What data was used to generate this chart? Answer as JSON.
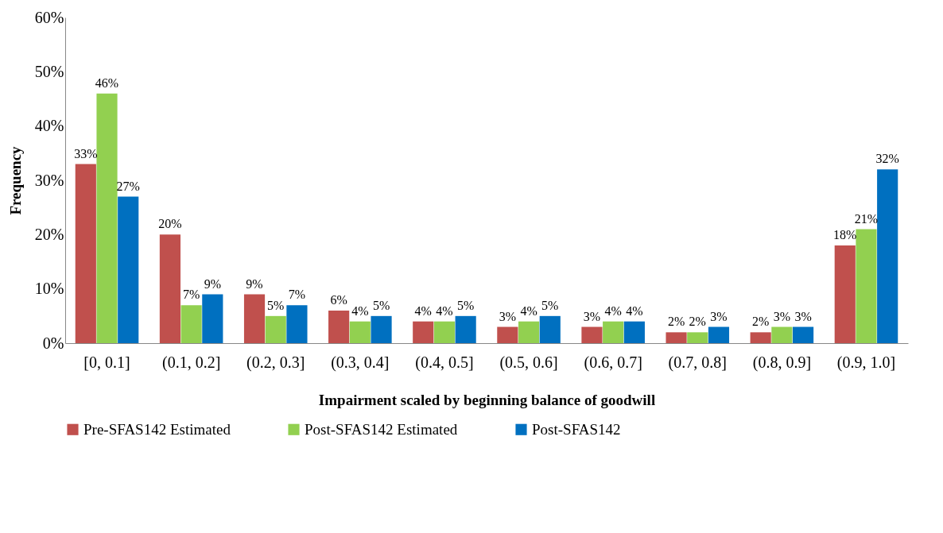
{
  "chart_data": {
    "type": "bar",
    "xlabel": "Impairment scaled by beginning balance of goodwill",
    "ylabel": "Frequency",
    "categories": [
      "[0, 0.1]",
      "(0.1, 0.2]",
      "(0.2, 0.3]",
      "(0.3, 0.4]",
      "(0.4, 0.5]",
      "(0.5, 0.6]",
      "(0.6, 0.7]",
      "(0.7, 0.8]",
      "(0.8, 0.9]",
      "(0.9, 1.0]"
    ],
    "series": [
      {
        "name": "Pre-SFAS142 Estimated",
        "color": "#c0504d",
        "values": [
          33,
          20,
          9,
          6,
          4,
          3,
          3,
          2,
          2,
          18
        ],
        "value_labels": [
          "33%",
          "20%",
          "9%",
          "6%",
          "4%",
          "3%",
          "3%",
          "2%",
          "2%",
          "18%"
        ]
      },
      {
        "name": "Post-SFAS142 Estimated",
        "color": "#92d050",
        "values": [
          46,
          7,
          5,
          4,
          4,
          4,
          4,
          2,
          3,
          21
        ],
        "value_labels": [
          "46%",
          "7%",
          "5%",
          "4%",
          "4%",
          "4%",
          "4%",
          "2%",
          "3%",
          "21%"
        ]
      },
      {
        "name": "Post-SFAS142",
        "color": "#0070c0",
        "values": [
          27,
          9,
          7,
          5,
          5,
          5,
          4,
          3,
          3,
          32
        ],
        "value_labels": [
          "27%",
          "9%",
          "7%",
          "5%",
          "5%",
          "5%",
          "4%",
          "3%",
          "3%",
          "32%"
        ]
      }
    ],
    "ylim": [
      0,
      60
    ],
    "yticks": [
      {
        "value": 0,
        "label": "0%"
      },
      {
        "value": 10,
        "label": "10%"
      },
      {
        "value": 20,
        "label": "20%"
      },
      {
        "value": 30,
        "label": "30%"
      },
      {
        "value": 40,
        "label": "40%"
      },
      {
        "value": 50,
        "label": "50%"
      },
      {
        "value": 60,
        "label": "60%"
      }
    ],
    "grid": false,
    "legend": "bottom"
  }
}
